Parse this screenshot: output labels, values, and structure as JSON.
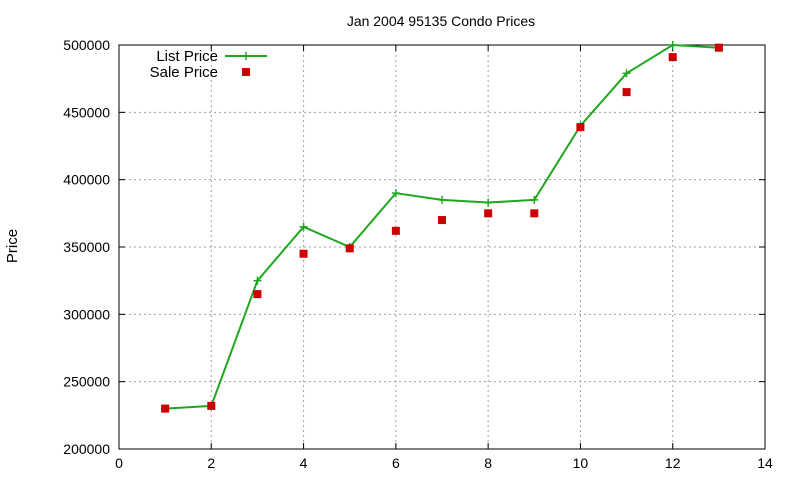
{
  "chart_data": {
    "type": "line",
    "title": "Jan 2004 95135 Condo Prices",
    "xlabel": "",
    "ylabel": "Price",
    "xlim": [
      0,
      14
    ],
    "ylim": [
      200000,
      500000
    ],
    "xticks": [
      0,
      2,
      4,
      6,
      8,
      10,
      12,
      14
    ],
    "yticks": [
      200000,
      250000,
      300000,
      350000,
      400000,
      450000,
      500000
    ],
    "grid": true,
    "legend_position": "top-left",
    "series": [
      {
        "name": "List Price",
        "style": "line+cross",
        "color": "#1ea81e",
        "x": [
          1,
          2,
          3,
          4,
          5,
          6,
          7,
          8,
          9,
          10,
          11,
          12,
          13
        ],
        "y": [
          230000,
          232000,
          325000,
          365000,
          350000,
          390000,
          385000,
          383000,
          385000,
          440000,
          479000,
          500000,
          498000
        ]
      },
      {
        "name": "Sale Price",
        "style": "square",
        "color": "#cc0000",
        "x": [
          1,
          2,
          3,
          4,
          5,
          6,
          7,
          8,
          9,
          10,
          11,
          12,
          13
        ],
        "y": [
          230000,
          232000,
          315000,
          345000,
          349000,
          362000,
          370000,
          375000,
          375000,
          439000,
          465000,
          491000,
          498000
        ]
      }
    ]
  }
}
